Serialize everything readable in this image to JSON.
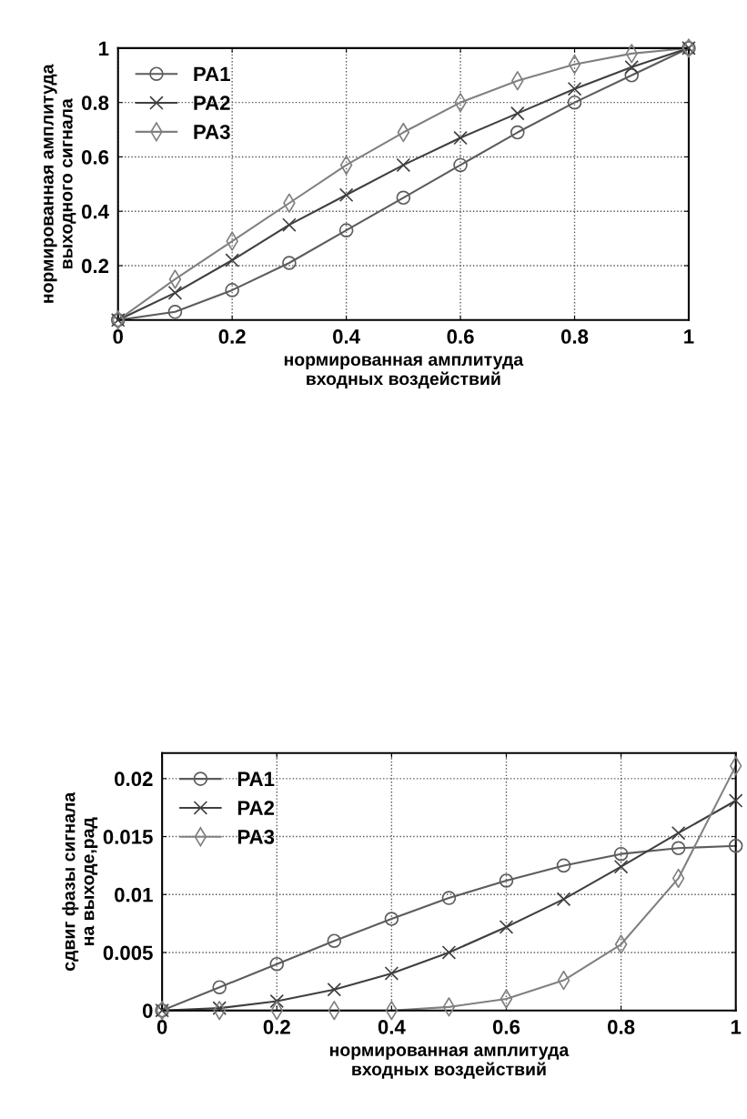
{
  "chart_data": [
    {
      "type": "line",
      "xlabel": "нормированная амплитуда\nвходных воздействий",
      "ylabel": "нормированная амплитуда\nвыходного сигнала",
      "x": [
        0,
        0.1,
        0.2,
        0.3,
        0.4,
        0.5,
        0.6,
        0.7,
        0.8,
        0.9,
        1
      ],
      "xlim": [
        0,
        1
      ],
      "xticks": [
        0,
        0.2,
        0.4,
        0.6,
        0.8,
        1
      ],
      "ylim": [
        0,
        1
      ],
      "yticks": [
        0.2,
        0.4,
        0.6,
        0.8,
        1
      ],
      "grid": true,
      "legend": "top left",
      "series": [
        {
          "name": "PA1",
          "color": "#5c5c5c",
          "marker": "circle",
          "values": [
            0,
            0.03,
            0.11,
            0.21,
            0.33,
            0.45,
            0.57,
            0.69,
            0.8,
            0.9,
            1.0
          ]
        },
        {
          "name": "PA2",
          "color": "#3f3f3f",
          "marker": "cross",
          "values": [
            0,
            0.1,
            0.22,
            0.35,
            0.46,
            0.57,
            0.67,
            0.76,
            0.85,
            0.93,
            1.0
          ]
        },
        {
          "name": "PA3",
          "color": "#808080",
          "marker": "diamond",
          "values": [
            0,
            0.15,
            0.29,
            0.43,
            0.57,
            0.69,
            0.8,
            0.88,
            0.94,
            0.98,
            1.0
          ]
        }
      ]
    },
    {
      "type": "line",
      "xlabel": "нормированная амплитуда\nвходных воздействий",
      "ylabel": "сдвиг фазы сигнала\nна выходе,рад",
      "x": [
        0,
        0.1,
        0.2,
        0.3,
        0.4,
        0.5,
        0.6,
        0.7,
        0.8,
        0.9,
        1
      ],
      "xlim": [
        0,
        1
      ],
      "xticks": [
        0,
        0.2,
        0.4,
        0.6,
        0.8,
        1
      ],
      "ylim": [
        0,
        0.0222
      ],
      "yticks": [
        0,
        0.005,
        0.01,
        0.015,
        0.02
      ],
      "grid": true,
      "legend": "top left",
      "series": [
        {
          "name": "PA1",
          "color": "#5c5c5c",
          "marker": "circle",
          "values": [
            0,
            0.002,
            0.004,
            0.006,
            0.0079,
            0.0097,
            0.0112,
            0.0125,
            0.0135,
            0.014,
            0.0142
          ]
        },
        {
          "name": "PA2",
          "color": "#3f3f3f",
          "marker": "cross",
          "values": [
            0,
            0.0002,
            0.0008,
            0.0018,
            0.0032,
            0.005,
            0.0072,
            0.0096,
            0.0124,
            0.0153,
            0.0181
          ]
        },
        {
          "name": "PA3",
          "color": "#808080",
          "marker": "diamond",
          "values": [
            0,
            0,
            0,
            0,
            0,
            0.0003,
            0.001,
            0.0026,
            0.0057,
            0.0114,
            0.0211
          ]
        }
      ]
    }
  ]
}
